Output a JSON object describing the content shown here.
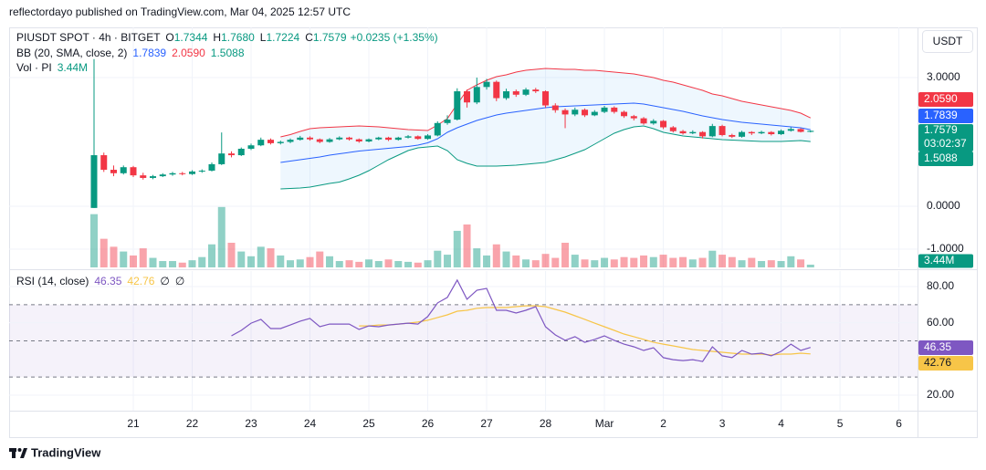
{
  "header": {
    "text": "reflectordayo published on TradingView.com, Mar 04, 2025 12:57 UTC"
  },
  "footer": {
    "brand": "TradingView"
  },
  "chart_data": [
    {
      "type": "candlestick",
      "legend": {
        "symbol": "PIUSDT SPOT · 4h · BITGET",
        "ohlc_keys": [
          "O",
          "H",
          "L",
          "C"
        ],
        "ohlc_values": [
          "1.7344",
          "1.7680",
          "1.7224",
          "1.7579"
        ],
        "change": "+0.0235 (+1.35%)"
      },
      "y_unit": "USDT",
      "countdown": "03:02:37",
      "up_color": "#089981",
      "down_color": "#f23645",
      "xlim": [
        -8.65,
        83.9
      ],
      "xticks": [
        {
          "value": 4,
          "label": "21"
        },
        {
          "value": 10,
          "label": "22"
        },
        {
          "value": 16,
          "label": "23"
        },
        {
          "value": 22,
          "label": "24"
        },
        {
          "value": 28,
          "label": "25"
        },
        {
          "value": 34,
          "label": "26"
        },
        {
          "value": 40,
          "label": "27"
        },
        {
          "value": 46,
          "label": "28"
        },
        {
          "value": 52,
          "label": "Mar"
        },
        {
          "value": 58,
          "label": "2"
        },
        {
          "value": 64,
          "label": "3"
        },
        {
          "value": 70,
          "label": "4"
        },
        {
          "value": 76,
          "label": "5"
        },
        {
          "value": 82,
          "label": "6"
        }
      ],
      "ylim": [
        -1.426,
        4.17
      ],
      "yticks": [
        {
          "value": 3,
          "label": "3.0000"
        },
        {
          "value": 0,
          "label": "0.0000"
        },
        {
          "value": -1,
          "label": "-1.0000"
        }
      ],
      "grid": true,
      "open": [
        -0.04,
        1.19,
        0.85,
        0.77,
        0.91,
        0.72,
        0.66,
        0.7,
        0.74,
        0.77,
        0.75,
        0.81,
        0.83,
        0.98,
        1.23,
        1.19,
        1.34,
        1.42,
        1.55,
        1.47,
        1.5,
        1.55,
        1.6,
        1.56,
        1.5,
        1.56,
        1.6,
        1.56,
        1.51,
        1.56,
        1.6,
        1.55,
        1.6,
        1.63,
        1.57,
        1.65,
        1.94,
        2.02,
        2.68,
        2.42,
        2.78,
        2.9,
        2.52,
        2.68,
        2.6,
        2.72,
        2.68,
        2.35,
        2.24,
        2.14,
        2.25,
        2.12,
        2.2,
        2.3,
        2.2,
        2.1,
        2.05,
        1.93,
        1.99,
        1.84,
        1.75,
        1.7,
        1.73,
        1.63,
        1.87,
        1.66,
        1.62,
        1.73,
        1.7,
        1.73,
        1.68,
        1.76,
        1.8,
        1.7344
      ],
      "high": [
        3.43,
        1.25,
        0.95,
        0.95,
        0.94,
        0.78,
        0.73,
        0.77,
        0.8,
        0.8,
        0.84,
        0.86,
        1.02,
        1.72,
        1.28,
        1.37,
        1.46,
        1.6,
        1.58,
        1.53,
        1.58,
        1.64,
        1.63,
        1.58,
        1.59,
        1.63,
        1.62,
        1.58,
        1.58,
        1.62,
        1.62,
        1.62,
        1.66,
        1.65,
        1.68,
        1.98,
        2.12,
        2.75,
        2.72,
        3.0,
        2.97,
        2.93,
        2.74,
        2.72,
        2.76,
        2.76,
        2.7,
        2.4,
        2.28,
        2.3,
        2.28,
        2.24,
        2.34,
        2.33,
        2.23,
        2.13,
        2.08,
        2.03,
        2.01,
        1.87,
        1.78,
        1.77,
        1.75,
        1.92,
        1.9,
        1.69,
        1.76,
        1.75,
        1.76,
        1.75,
        1.79,
        1.84,
        1.82,
        1.768
      ],
      "low": [
        -0.04,
        0.8,
        0.7,
        0.74,
        0.68,
        0.62,
        0.63,
        0.68,
        0.71,
        0.72,
        0.73,
        0.78,
        0.81,
        0.96,
        1.14,
        1.17,
        1.31,
        1.4,
        1.44,
        1.44,
        1.47,
        1.53,
        1.53,
        1.47,
        1.48,
        1.54,
        1.53,
        1.48,
        1.49,
        1.54,
        1.52,
        1.53,
        1.58,
        1.55,
        1.55,
        1.63,
        1.9,
        2.0,
        2.3,
        2.38,
        2.72,
        2.45,
        2.48,
        2.55,
        2.57,
        2.64,
        2.3,
        2.18,
        1.82,
        2.1,
        2.08,
        2.1,
        2.17,
        2.16,
        2.06,
        2.0,
        1.9,
        1.9,
        1.8,
        1.72,
        1.67,
        1.68,
        1.58,
        1.61,
        1.63,
        1.59,
        1.6,
        1.66,
        1.68,
        1.65,
        1.66,
        1.74,
        1.72,
        1.7224
      ],
      "close": [
        1.19,
        0.85,
        0.77,
        0.91,
        0.72,
        0.66,
        0.7,
        0.74,
        0.77,
        0.75,
        0.81,
        0.83,
        0.98,
        1.23,
        1.19,
        1.34,
        1.42,
        1.55,
        1.47,
        1.5,
        1.55,
        1.6,
        1.56,
        1.5,
        1.56,
        1.6,
        1.56,
        1.51,
        1.56,
        1.6,
        1.55,
        1.6,
        1.63,
        1.57,
        1.65,
        1.94,
        2.02,
        2.68,
        2.42,
        2.78,
        2.9,
        2.52,
        2.68,
        2.6,
        2.72,
        2.68,
        2.35,
        2.24,
        2.14,
        2.25,
        2.12,
        2.2,
        2.3,
        2.2,
        2.1,
        2.05,
        1.93,
        1.99,
        1.84,
        1.75,
        1.7,
        1.73,
        1.63,
        1.87,
        1.66,
        1.62,
        1.73,
        1.7,
        1.73,
        1.68,
        1.76,
        1.8,
        1.7344,
        1.7579
      ],
      "bands_label": "BB (20, SMA, close, 2)",
      "band_fill": "#2196f3",
      "bands": [
        {
          "color": "#2962ff",
          "last_label": "1.7839",
          "values": [
            null,
            null,
            null,
            null,
            null,
            null,
            null,
            null,
            null,
            null,
            null,
            null,
            null,
            null,
            null,
            null,
            null,
            null,
            null,
            1.021,
            1.053,
            1.085,
            1.117,
            1.149,
            1.191,
            1.223,
            1.255,
            1.287,
            1.309,
            1.33,
            1.351,
            1.372,
            1.394,
            1.426,
            1.479,
            1.574,
            1.723,
            1.83,
            1.915,
            2.0,
            2.064,
            2.128,
            2.17,
            2.202,
            2.234,
            2.266,
            2.298,
            2.319,
            2.33,
            2.34,
            2.351,
            2.362,
            2.372,
            2.383,
            2.394,
            2.404,
            2.383,
            2.34,
            2.298,
            2.255,
            2.213,
            2.16,
            2.106,
            2.064,
            2.021,
            1.989,
            1.957,
            1.936,
            1.915,
            1.894,
            1.872,
            1.851,
            1.83,
            1.7839
          ]
        },
        {
          "color": "#f23645",
          "last_label": "2.0590",
          "values": [
            null,
            null,
            null,
            null,
            null,
            null,
            null,
            null,
            null,
            null,
            null,
            null,
            null,
            null,
            null,
            null,
            null,
            null,
            null,
            1.617,
            1.67,
            1.745,
            1.809,
            1.83,
            1.84,
            1.851,
            1.862,
            1.872,
            1.862,
            1.851,
            1.83,
            1.809,
            1.787,
            1.777,
            1.766,
            1.894,
            2.043,
            2.383,
            2.702,
            2.83,
            2.936,
            3.021,
            3.064,
            3.128,
            3.17,
            3.191,
            3.213,
            3.202,
            3.191,
            3.191,
            3.17,
            3.17,
            3.149,
            3.128,
            3.106,
            3.085,
            3.043,
            3.0,
            2.936,
            2.894,
            2.83,
            2.766,
            2.702,
            2.617,
            2.574,
            2.511,
            2.447,
            2.404,
            2.362,
            2.319,
            2.277,
            2.234,
            2.17,
            2.059
          ]
        },
        {
          "color": "#089981",
          "last_label": "1.5088",
          "values": [
            null,
            null,
            null,
            null,
            null,
            null,
            null,
            null,
            null,
            null,
            null,
            null,
            null,
            null,
            null,
            null,
            null,
            null,
            null,
            0.404,
            0.415,
            0.426,
            0.447,
            0.489,
            0.532,
            0.564,
            0.638,
            0.723,
            0.83,
            0.957,
            1.085,
            1.191,
            1.298,
            1.362,
            1.383,
            1.404,
            1.298,
            1.085,
            1.0,
            0.936,
            0.936,
            0.936,
            0.947,
            0.957,
            0.979,
            1.0,
            1.021,
            1.085,
            1.149,
            1.234,
            1.319,
            1.447,
            1.574,
            1.702,
            1.787,
            1.851,
            1.872,
            1.809,
            1.723,
            1.681,
            1.638,
            1.617,
            1.596,
            1.574,
            1.553,
            1.543,
            1.532,
            1.521,
            1.511,
            1.511,
            1.511,
            1.521,
            1.532,
            1.5088
          ]
        }
      ],
      "volume": {
        "name": "Vol · PI",
        "last_label": "3.44M",
        "ylim": [
          0,
          302
        ],
        "up_color": "#089981",
        "down_color": "#f23645",
        "values": [
          67,
          36,
          26,
          20,
          15,
          24,
          12,
          8,
          8,
          6,
          9,
          13,
          29,
          76,
          31,
          20,
          14,
          26,
          24,
          15,
          9,
          10,
          13,
          20,
          14,
          8,
          9,
          7,
          10,
          8,
          10,
          8,
          7,
          6,
          9,
          21,
          16,
          46,
          54,
          24,
          15,
          29,
          20,
          15,
          10,
          9,
          17,
          12,
          31,
          16,
          10,
          9,
          12,
          10,
          13,
          12,
          15,
          13,
          16,
          12,
          13,
          10,
          12,
          21,
          16,
          13,
          9,
          12,
          8,
          9,
          8,
          14,
          10,
          3.44
        ]
      }
    },
    {
      "type": "line",
      "title": "RSI (14, close)",
      "na_marks": [
        "∅",
        "∅"
      ],
      "xlim": [
        -8.65,
        83.9
      ],
      "ylim": [
        11.4,
        88.6
      ],
      "yticks": [
        {
          "value": 80,
          "label": "80.00"
        },
        {
          "value": 60,
          "label": "60.00"
        },
        {
          "value": 20,
          "label": "20.00"
        }
      ],
      "band_levels": [
        70,
        50,
        30
      ],
      "band_color": "#7e57c2",
      "series": [
        {
          "color": "#7e57c2",
          "values": [
            null,
            null,
            null,
            null,
            null,
            null,
            null,
            null,
            null,
            null,
            null,
            null,
            null,
            null,
            52.8,
            55.8,
            59.8,
            61.9,
            56.8,
            56.8,
            58.8,
            60.9,
            62.4,
            57.8,
            59.3,
            59.3,
            59.3,
            56.3,
            58.3,
            57.8,
            58.8,
            59.3,
            59.8,
            59.3,
            63.4,
            71.0,
            74.0,
            83.6,
            73.0,
            78.0,
            79.0,
            66.9,
            66.9,
            65.4,
            66.9,
            68.9,
            57.8,
            53.3,
            50.3,
            52.3,
            49.2,
            50.8,
            52.8,
            50.3,
            48.2,
            46.7,
            44.7,
            46.2,
            40.7,
            39.6,
            39.1,
            39.6,
            38.6,
            46.7,
            41.7,
            40.7,
            44.7,
            42.7,
            43.2,
            41.7,
            44.2,
            48.2,
            44.7,
            46.35
          ]
        },
        {
          "color": "#f7c548",
          "values": [
            null,
            null,
            null,
            null,
            null,
            null,
            null,
            null,
            null,
            null,
            null,
            null,
            null,
            null,
            null,
            null,
            null,
            null,
            null,
            null,
            null,
            null,
            null,
            null,
            null,
            null,
            null,
            58.3,
            58.3,
            58.8,
            58.8,
            59.3,
            59.8,
            60.4,
            61.4,
            62.9,
            64.4,
            66.4,
            66.9,
            68.0,
            68.4,
            68.4,
            68.4,
            68.9,
            69.4,
            69.4,
            68.9,
            67.4,
            65.9,
            63.9,
            61.9,
            59.8,
            57.8,
            55.8,
            53.8,
            52.3,
            50.8,
            49.2,
            48.2,
            47.2,
            46.2,
            45.2,
            44.7,
            44.2,
            43.7,
            43.2,
            42.7,
            42.7,
            42.7,
            42.2,
            42.7,
            42.7,
            43.2,
            42.76
          ]
        }
      ]
    }
  ]
}
